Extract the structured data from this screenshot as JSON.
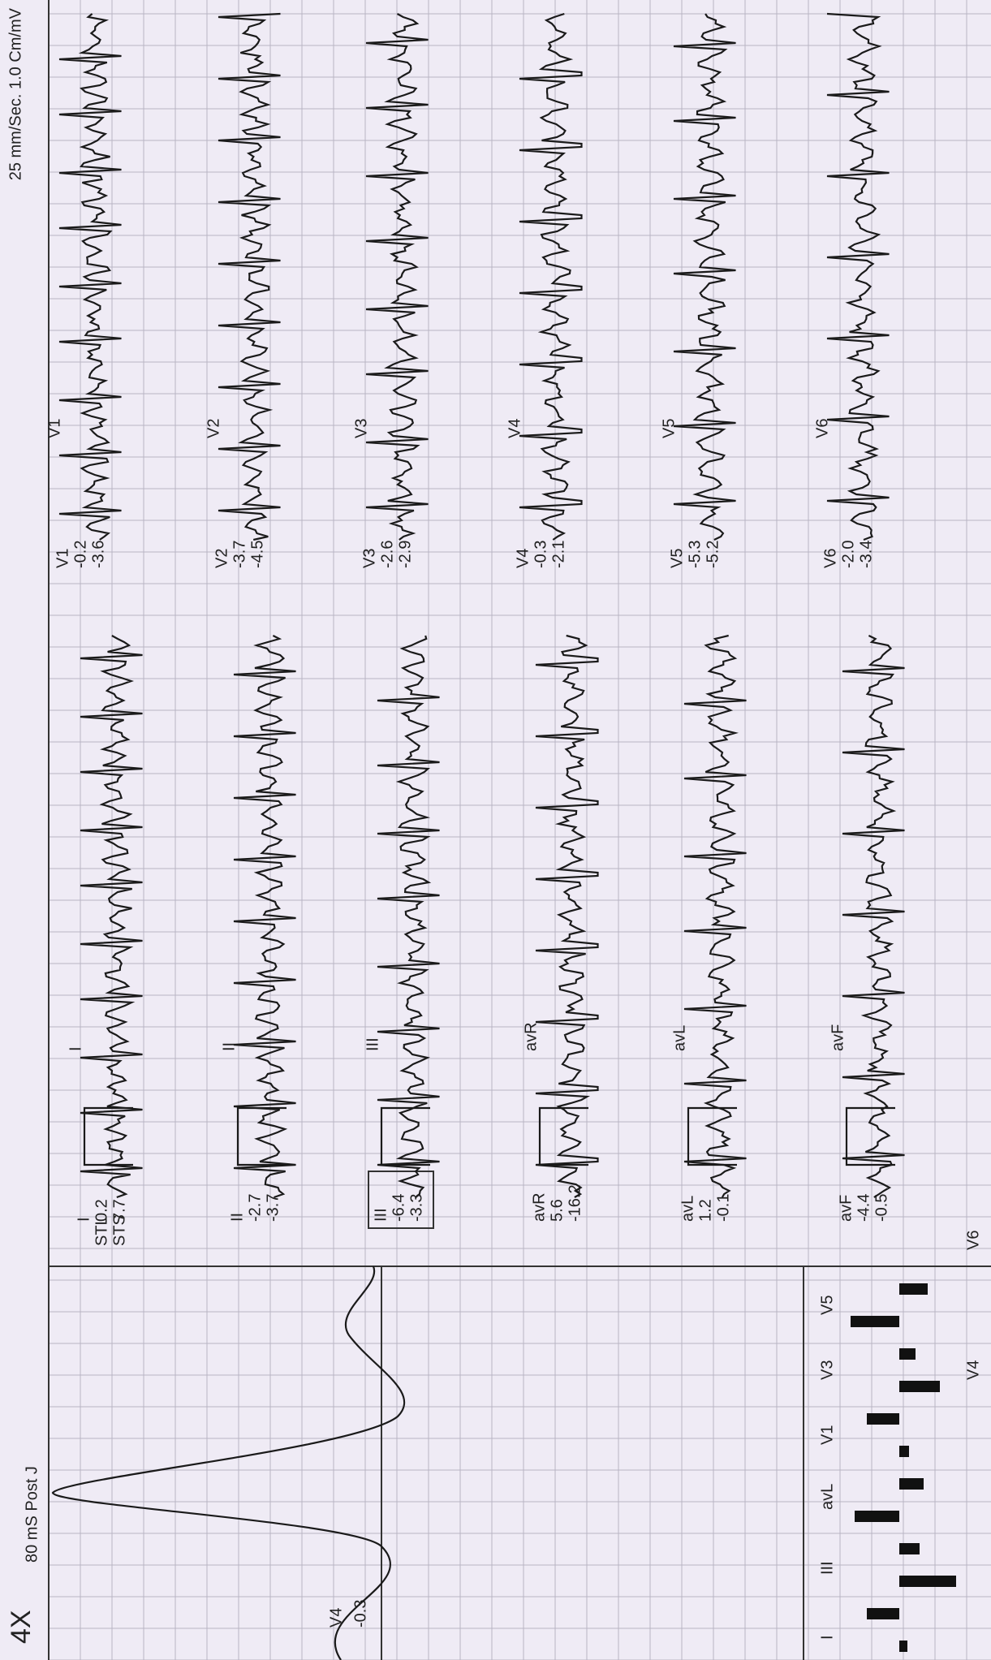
{
  "header": {
    "gain": "4X",
    "median_label": "80 mS Post J",
    "speed": "25 mm/Sec.  1.0 Cm/mV"
  },
  "median": {
    "lead": "V4",
    "value": "-0.3"
  },
  "stl_label": "STL",
  "sts_label": "STS",
  "limb_leads": [
    {
      "name": "I",
      "values": [
        "0.2",
        "7.7"
      ]
    },
    {
      "name": "II",
      "values": [
        "-2.7",
        "-3.7"
      ]
    },
    {
      "name": "III",
      "values": [
        "-6.4",
        "-3.3"
      ]
    },
    {
      "name": "avR",
      "values": [
        "5.6",
        "-16.2"
      ]
    },
    {
      "name": "avL",
      "values": [
        "1.2",
        "-0.1"
      ]
    },
    {
      "name": "avF",
      "values": [
        "-4.4",
        "-0.5"
      ]
    }
  ],
  "chest_leads": [
    {
      "name": "V1",
      "values": [
        "-0.2",
        "-3.6"
      ]
    },
    {
      "name": "V2",
      "values": [
        "-3.7",
        "-4.5"
      ]
    },
    {
      "name": "V3",
      "values": [
        "-2.6",
        "-2.9"
      ]
    },
    {
      "name": "V4",
      "values": [
        "-0.3",
        "-2.1"
      ]
    },
    {
      "name": "V5",
      "values": [
        "-5.3",
        "-5.2"
      ]
    },
    {
      "name": "V6",
      "values": [
        "-2.0",
        "-3.4"
      ]
    }
  ],
  "bar_labels": [
    "I",
    "III",
    "avL",
    "V1",
    "V3",
    "V5",
    "V4",
    "V6"
  ]
}
